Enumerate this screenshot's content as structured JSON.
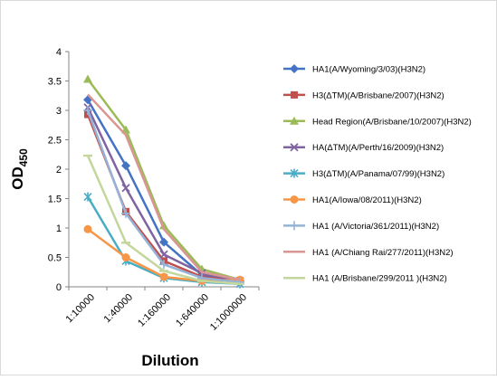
{
  "chart_data": {
    "type": "line",
    "xlabel": "Dilution",
    "ylabel_main": "OD",
    "ylabel_sub": "450",
    "categories": [
      "1:10000",
      "1:40000",
      "1:160000",
      "1:640000",
      "1:1000000"
    ],
    "ylim": [
      0,
      4
    ],
    "yticks": [
      0,
      0.5,
      1,
      1.5,
      2,
      2.5,
      3,
      3.5,
      4
    ],
    "ytick_labels": [
      "0",
      "0.5",
      "1",
      "1.5",
      "2",
      "2.5",
      "3",
      "3.5",
      "4"
    ],
    "grid": false,
    "legend_position": "right",
    "series": [
      {
        "name": "HA1(A/Wyoming/3/03)(H3N2)",
        "color": "#4472C4",
        "marker": "diamond",
        "values": [
          3.18,
          2.06,
          0.76,
          0.2,
          0.1
        ]
      },
      {
        "name": "H3(ΔTM)(A/Brisbane/2007)(H3N2)",
        "color": "#C0504D",
        "marker": "square",
        "values": [
          2.93,
          1.28,
          0.44,
          0.17,
          0.1
        ]
      },
      {
        "name": "Head Region(A/Brisbane/10/2007)(H3N2)",
        "color": "#9BBB59",
        "marker": "triangle",
        "values": [
          3.53,
          2.67,
          1.04,
          0.3,
          0.12
        ]
      },
      {
        "name": "HA(ΔTM)(A/Perth/16/2009)(H3N2)",
        "color": "#8064A2",
        "marker": "x",
        "values": [
          3.05,
          1.68,
          0.55,
          0.23,
          0.1
        ]
      },
      {
        "name": "H3(ΔTM)(A/Panama/07/99)(H3N2)",
        "color": "#4BACC6",
        "marker": "star",
        "values": [
          1.53,
          0.44,
          0.15,
          0.08,
          0.05
        ]
      },
      {
        "name": "HA1(A/Iowa/08/2011)(H3N2)",
        "color": "#F79646",
        "marker": "circle",
        "values": [
          0.98,
          0.5,
          0.17,
          0.1,
          0.12
        ]
      },
      {
        "name": "HA1 (A/Victoria/361/2011)(H3N2)",
        "color": "#95B3D7",
        "marker": "plus",
        "values": [
          3.0,
          1.25,
          0.38,
          0.15,
          0.08
        ]
      },
      {
        "name": "HA1 (A/Chiang Rai/277/2011)(H3N2)",
        "color": "#DA9694",
        "marker": "none",
        "values": [
          3.27,
          2.58,
          0.98,
          0.25,
          0.12
        ]
      },
      {
        "name": "HA1 (A/Brisbane/299/2011 )(H3N2)",
        "color": "#C3D69B",
        "marker": "dash",
        "values": [
          2.23,
          0.75,
          0.27,
          0.1,
          0.05
        ]
      }
    ]
  }
}
